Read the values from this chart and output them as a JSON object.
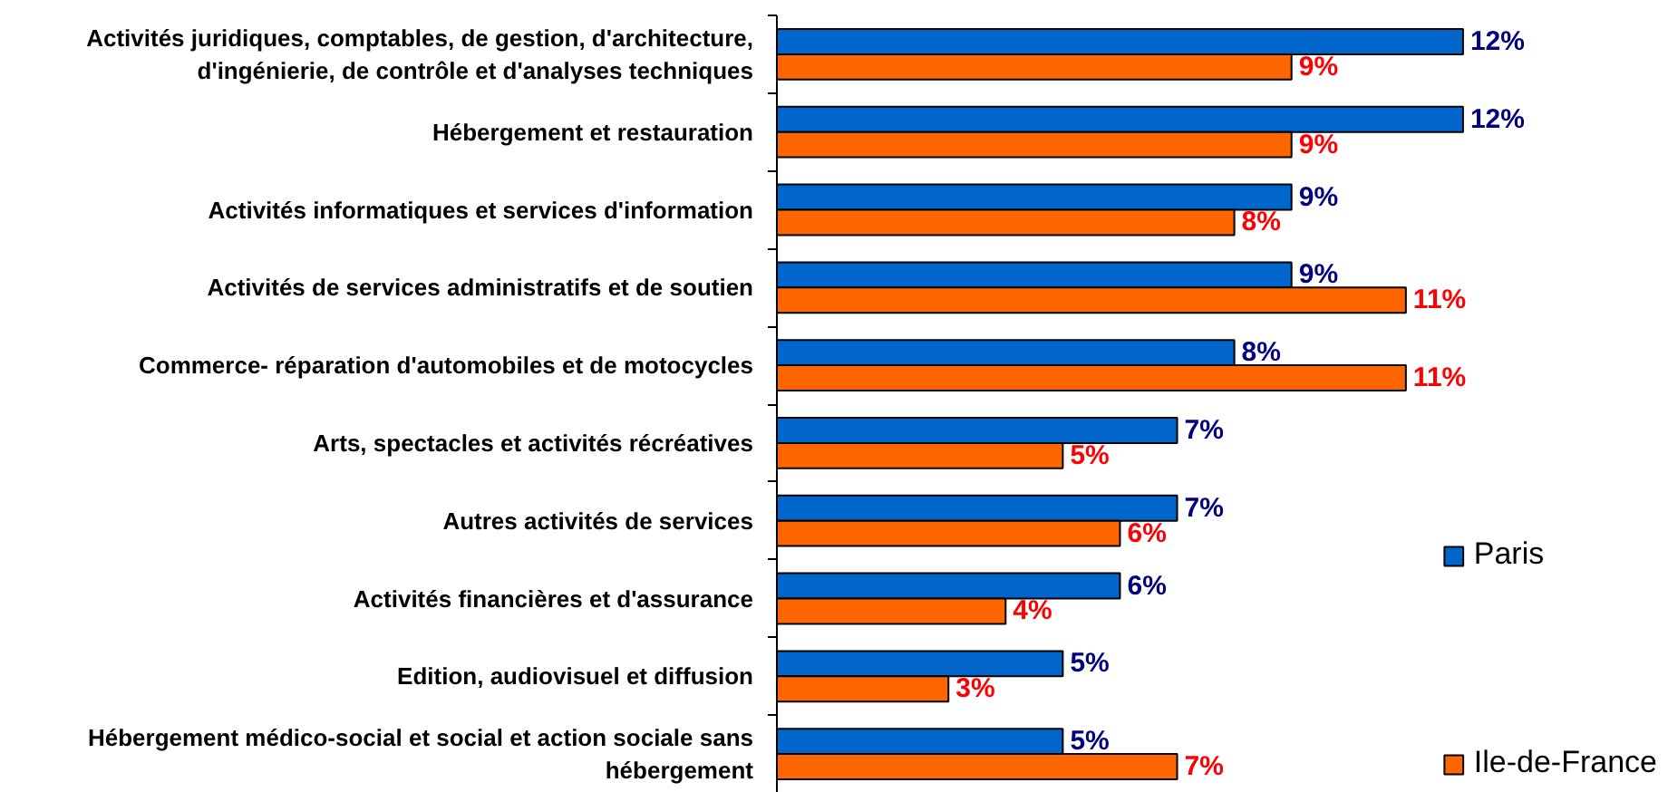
{
  "chart_data": {
    "type": "bar",
    "orientation": "horizontal",
    "categories": [
      "Activités juridiques, comptables, de gestion, d'architecture, d'ingénierie, de contrôle et d'analyses techniques",
      "Hébergement et restauration",
      "Activités informatiques et services d'information",
      "Activités de services administratifs et de soutien",
      "Commerce- réparation d'automobiles et de motocycles",
      "Arts, spectacles et activités récréatives",
      "Autres activités de services",
      "Activités financières et d'assurance",
      "Edition, audiovisuel et diffusion",
      "Hébergement médico-social et social et action sociale sans hébergement"
    ],
    "series": [
      {
        "name": "Paris",
        "color": "#0066cc",
        "values": [
          12,
          12,
          9,
          9,
          8,
          7,
          7,
          6,
          5,
          5
        ],
        "value_labels": [
          "12%",
          "12%",
          "9%",
          "9%",
          "8%",
          "7%",
          "7%",
          "6%",
          "5%",
          "5%"
        ]
      },
      {
        "name": "Ile-de-France",
        "color": "#ff6600",
        "values": [
          9,
          9,
          8,
          11,
          11,
          5,
          6,
          4,
          3,
          7
        ],
        "value_labels": [
          "9%",
          "9%",
          "8%",
          "11%",
          "11%",
          "5%",
          "6%",
          "4%",
          "3%",
          "7%"
        ]
      }
    ],
    "legend": "bottom right",
    "grid": false
  }
}
